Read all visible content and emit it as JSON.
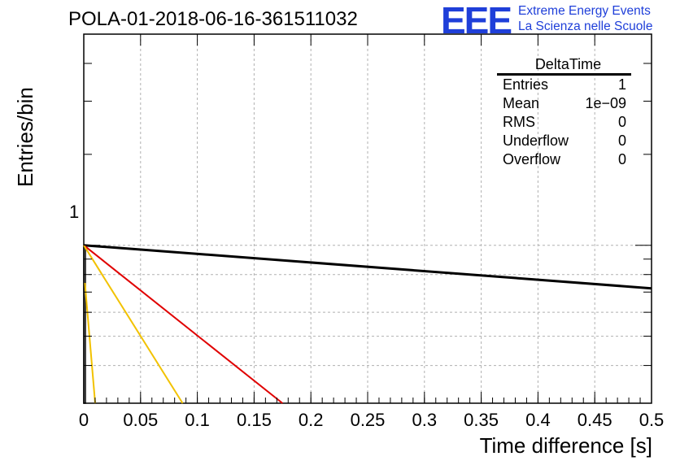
{
  "title": "POLA-01-2018-06-16-361511032",
  "logo": {
    "mark": "EEE",
    "line1": "Extreme Energy Events",
    "line2": "La Scienza nelle Scuole"
  },
  "colors": {
    "logo": "#1f3fd9",
    "curve_black": "#000000",
    "curve_red": "#e00000",
    "curve_yellow": "#f2c200",
    "grid": "#b0b0b0"
  },
  "stats": {
    "header": "DeltaTime",
    "rows": [
      {
        "label": "Entries",
        "value": "1"
      },
      {
        "label": "Mean",
        "value": "1e−09"
      },
      {
        "label": "RMS",
        "value": "0"
      },
      {
        "label": "Underflow",
        "value": "0"
      },
      {
        "label": "Overflow",
        "value": "0"
      }
    ]
  },
  "chart_data": {
    "type": "line",
    "title": "POLA-01-2018-06-16-361511032",
    "xlabel": "Time difference [s]",
    "ylabel": "Entries/bin",
    "xlim": [
      0,
      0.5
    ],
    "x_ticks": [
      "0",
      "0.05",
      "0.1",
      "0.15",
      "0.2",
      "0.25",
      "0.3",
      "0.35",
      "0.4",
      "0.45",
      "0.5"
    ],
    "y_tick_labels": [
      "1"
    ],
    "y_scale": "log",
    "ylim": [
      0.3,
      5
    ],
    "grid": true,
    "histogram": {
      "bin": [
        0,
        0.001
      ],
      "value": 1
    },
    "series": [
      {
        "color": "black",
        "x": [
          0,
          0.5
        ],
        "y": [
          1,
          0.72
        ]
      },
      {
        "color": "red",
        "x": [
          0,
          0.175
        ],
        "y": [
          1,
          0.3
        ]
      },
      {
        "color": "yellow",
        "x": [
          0,
          0.087
        ],
        "y": [
          1,
          0.3
        ]
      },
      {
        "color": "yellow",
        "x": [
          0.001,
          0.01
        ],
        "y": [
          0.75,
          0.3
        ]
      }
    ]
  }
}
